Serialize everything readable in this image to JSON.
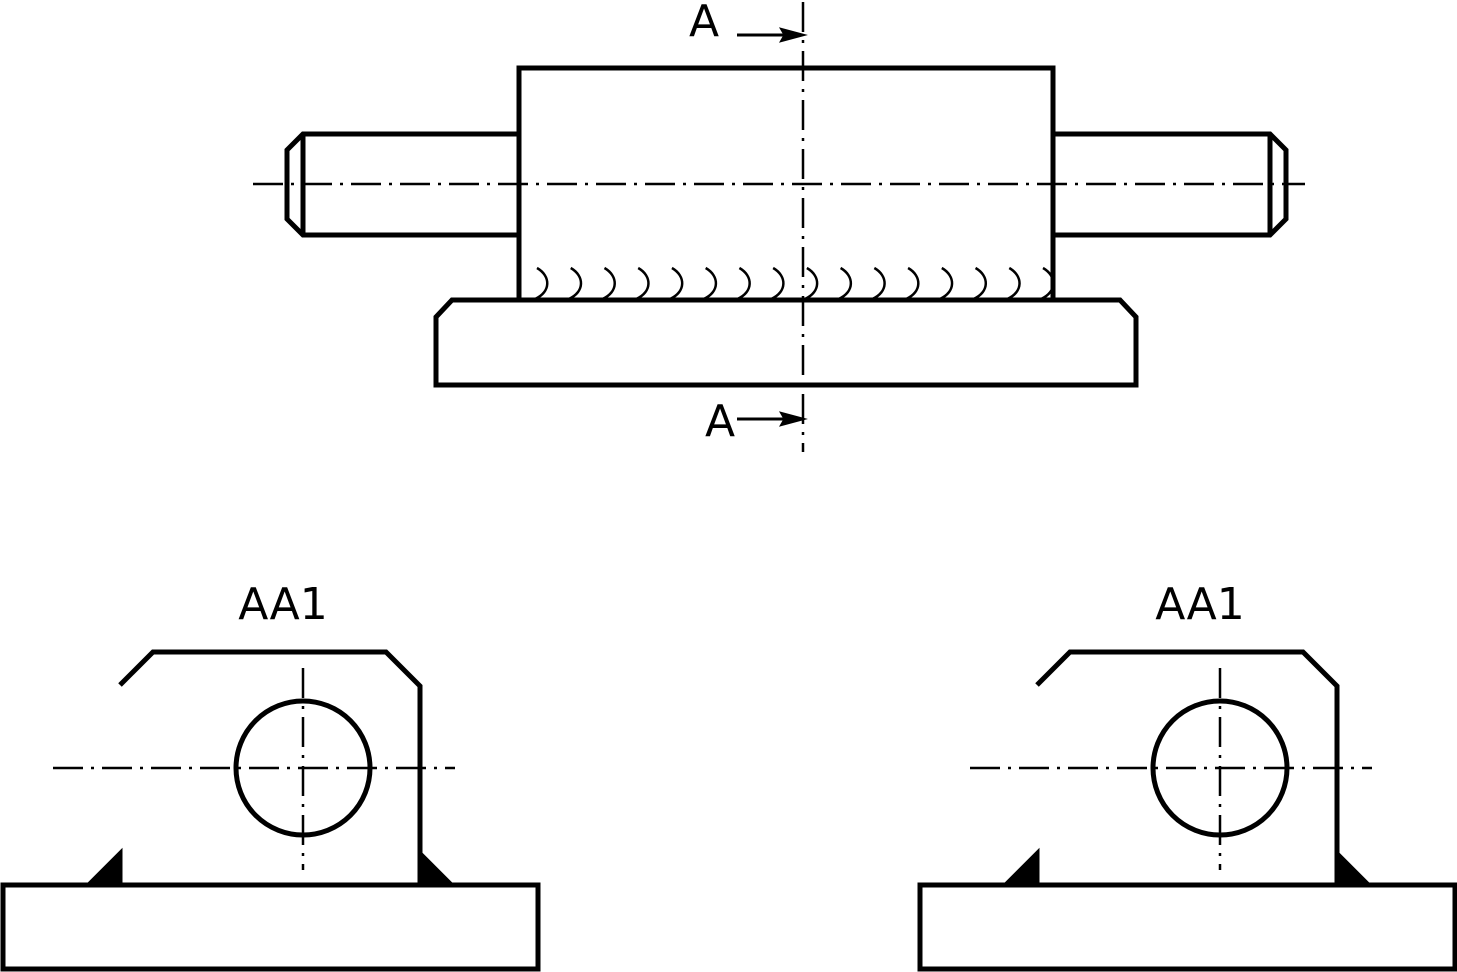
{
  "section_marks": {
    "top": "A",
    "bottom": "A"
  },
  "section_views": {
    "left": {
      "title": "AA1"
    },
    "right": {
      "title": "AA1"
    }
  },
  "weld_symbol_count": 16
}
